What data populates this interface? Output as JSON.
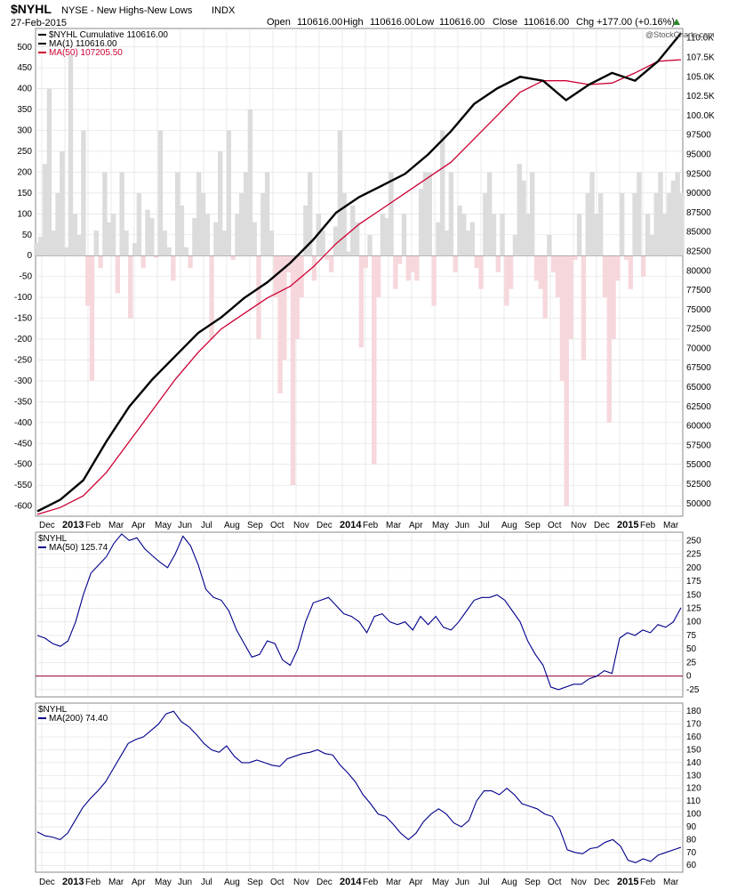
{
  "header": {
    "symbol": "$NYHL",
    "description": "NYSE - New Highs-New Lows",
    "indx": "INDX",
    "date": "27-Feb-2015",
    "open_label": "Open",
    "open": "110616.00",
    "high_label": "High",
    "high": "110616.00",
    "low_label": "Low",
    "low": "110616.00",
    "close_label": "Close",
    "close": "110616.00",
    "chg_label": "Chg",
    "chg": "+177.00 (+0.16%)",
    "watermark": "@StockCharts.com",
    "up_color": "#2a8a2a"
  },
  "colors": {
    "cumulative": "#000000",
    "ma50_cum": "#cc0033",
    "hist_pos": "#dcdcdc",
    "hist_neg": "#f6d8dc",
    "blue_line": "#00008b",
    "zero_line": "#990033",
    "grid": "#e2e2e2"
  },
  "chart_data": [
    {
      "type": "line",
      "panel": "main",
      "legend": [
        {
          "label": "$NYHL Cumulative 110616.00",
          "color": "#000000"
        },
        {
          "label": "MA(1) 110616.00",
          "color": "#000000"
        },
        {
          "label": "MA(50) 107205.50",
          "color": "#cc0033"
        }
      ],
      "left_axis": {
        "range": [
          -620,
          540
        ],
        "ticks": [
          500,
          450,
          400,
          350,
          300,
          250,
          200,
          150,
          100,
          50,
          0,
          -50,
          -100,
          -150,
          -200,
          -250,
          -300,
          -350,
          -400,
          -450,
          -500,
          -550,
          -600
        ]
      },
      "right_axis": {
        "range": [
          48600,
          111000
        ],
        "ticks": [
          "110.0K",
          "107.5K",
          "105.0K",
          "102.5K",
          "100.0K",
          "97500",
          "95000",
          "92500",
          "90000",
          "87500",
          "85000",
          "82500",
          "80000",
          "77500",
          "75000",
          "72500",
          "70000",
          "67500",
          "65000",
          "62500",
          "60000",
          "57500",
          "55000",
          "52500",
          "50000"
        ],
        "values": [
          110000,
          107500,
          105000,
          102500,
          100000,
          97500,
          95000,
          92500,
          90000,
          87500,
          85000,
          82500,
          80000,
          77500,
          75000,
          72500,
          70000,
          67500,
          65000,
          62500,
          60000,
          57500,
          55000,
          52500,
          50000
        ]
      },
      "x_months": [
        "Dec",
        "2013",
        "Feb",
        "Mar",
        "Apr",
        "May",
        "Jun",
        "Jul",
        "Aug",
        "Sep",
        "Oct",
        "Nov",
        "Dec",
        "2014",
        "Feb",
        "Mar",
        "Apr",
        "May",
        "Jun",
        "Jul",
        "Aug",
        "Sep",
        "Oct",
        "Nov",
        "Dec",
        "2015",
        "Feb",
        "Mar"
      ],
      "cumulative": [
        49000,
        50500,
        53000,
        58000,
        62500,
        66000,
        69000,
        72000,
        74000,
        76500,
        78500,
        81000,
        84000,
        87500,
        89500,
        91000,
        92500,
        95000,
        98000,
        101500,
        103500,
        105000,
        104500,
        102000,
        104000,
        105500,
        104500,
        107000,
        110616
      ],
      "ma50": [
        48600,
        49500,
        51000,
        54000,
        58000,
        62000,
        66000,
        69500,
        72500,
        74500,
        76500,
        78000,
        80500,
        83500,
        86000,
        88000,
        90000,
        92000,
        94000,
        97000,
        100000,
        103000,
        104500,
        104500,
        104000,
        104200,
        105500,
        107000,
        107205
      ],
      "hist": [
        30,
        45,
        220,
        400,
        60,
        150,
        250,
        20,
        480,
        100,
        50,
        300,
        -120,
        -300,
        60,
        -30,
        200,
        80,
        100,
        -90,
        200,
        60,
        -150,
        30,
        150,
        -30,
        110,
        90,
        -5,
        300,
        60,
        20,
        -60,
        200,
        120,
        20,
        -30,
        90,
        200,
        150,
        100,
        -200,
        80,
        250,
        60,
        300,
        -10,
        100,
        150,
        200,
        350,
        80,
        -200,
        150,
        200,
        60,
        -100,
        -330,
        -250,
        -40,
        -550,
        -200,
        -100,
        120,
        200,
        -60,
        100,
        60,
        -10,
        -40,
        70,
        300,
        150,
        10,
        120,
        80,
        -220,
        -30,
        50,
        -500,
        -100,
        100,
        90,
        200,
        -80,
        -20,
        100,
        -60,
        -40,
        -60,
        160,
        200,
        200,
        -120,
        80,
        300,
        60,
        200,
        -40,
        120,
        100,
        60,
        80,
        -30,
        -80,
        150,
        200,
        100,
        -40,
        100,
        -120,
        -80,
        50,
        220,
        180,
        100,
        200,
        -60,
        -80,
        -150,
        50,
        -40,
        -100,
        -300,
        -600,
        -200,
        -10,
        100,
        -250,
        150,
        200,
        100,
        150,
        -100,
        -400,
        -200,
        -60,
        150,
        -10,
        -80,
        150,
        200,
        -50,
        100,
        50,
        150,
        200,
        100,
        150,
        180,
        200,
        150
      ]
    },
    {
      "type": "line",
      "panel": "ma50",
      "legend": [
        {
          "label": "$NYHL",
          "color": "#000000"
        },
        {
          "label": "MA(50) 125.74",
          "color": "#00008b"
        }
      ],
      "right_axis": {
        "range": [
          -35,
          262
        ],
        "ticks": [
          250,
          225,
          200,
          175,
          150,
          125,
          100,
          75,
          50,
          25,
          0,
          -25
        ]
      },
      "zero_line": 0,
      "values": [
        75,
        70,
        60,
        55,
        65,
        100,
        150,
        190,
        205,
        220,
        245,
        262,
        250,
        255,
        235,
        222,
        210,
        200,
        225,
        258,
        240,
        205,
        160,
        145,
        140,
        120,
        85,
        60,
        35,
        40,
        65,
        60,
        30,
        20,
        50,
        100,
        135,
        140,
        145,
        130,
        115,
        110,
        100,
        80,
        110,
        115,
        100,
        95,
        100,
        85,
        110,
        95,
        110,
        90,
        85,
        100,
        120,
        140,
        145,
        145,
        150,
        140,
        120,
        100,
        65,
        40,
        20,
        -20,
        -25,
        -20,
        -15,
        -15,
        -5,
        0,
        10,
        5,
        70,
        80,
        75,
        85,
        80,
        95,
        90,
        100,
        126
      ]
    },
    {
      "type": "line",
      "panel": "ma200",
      "legend": [
        {
          "label": "$NYHL",
          "color": "#000000"
        },
        {
          "label": "MA(200) 74.40",
          "color": "#00008b"
        }
      ],
      "right_axis": {
        "range": [
          56,
          185
        ],
        "ticks": [
          180,
          170,
          160,
          150,
          140,
          130,
          120,
          110,
          100,
          90,
          80,
          70,
          60
        ]
      },
      "values": [
        86,
        83,
        82,
        80,
        85,
        95,
        105,
        112,
        118,
        125,
        135,
        145,
        155,
        158,
        160,
        165,
        170,
        178,
        180,
        172,
        168,
        162,
        155,
        150,
        148,
        153,
        145,
        140,
        140,
        142,
        140,
        138,
        137,
        143,
        145,
        147,
        148,
        150,
        147,
        146,
        138,
        132,
        125,
        115,
        108,
        100,
        98,
        92,
        85,
        80,
        85,
        94,
        100,
        104,
        100,
        93,
        90,
        95,
        110,
        118,
        118,
        115,
        120,
        115,
        108,
        106,
        104,
        100,
        98,
        88,
        72,
        70,
        69,
        73,
        74,
        78,
        80,
        75,
        64,
        62,
        65,
        63,
        68,
        70,
        72,
        74
      ]
    }
  ]
}
